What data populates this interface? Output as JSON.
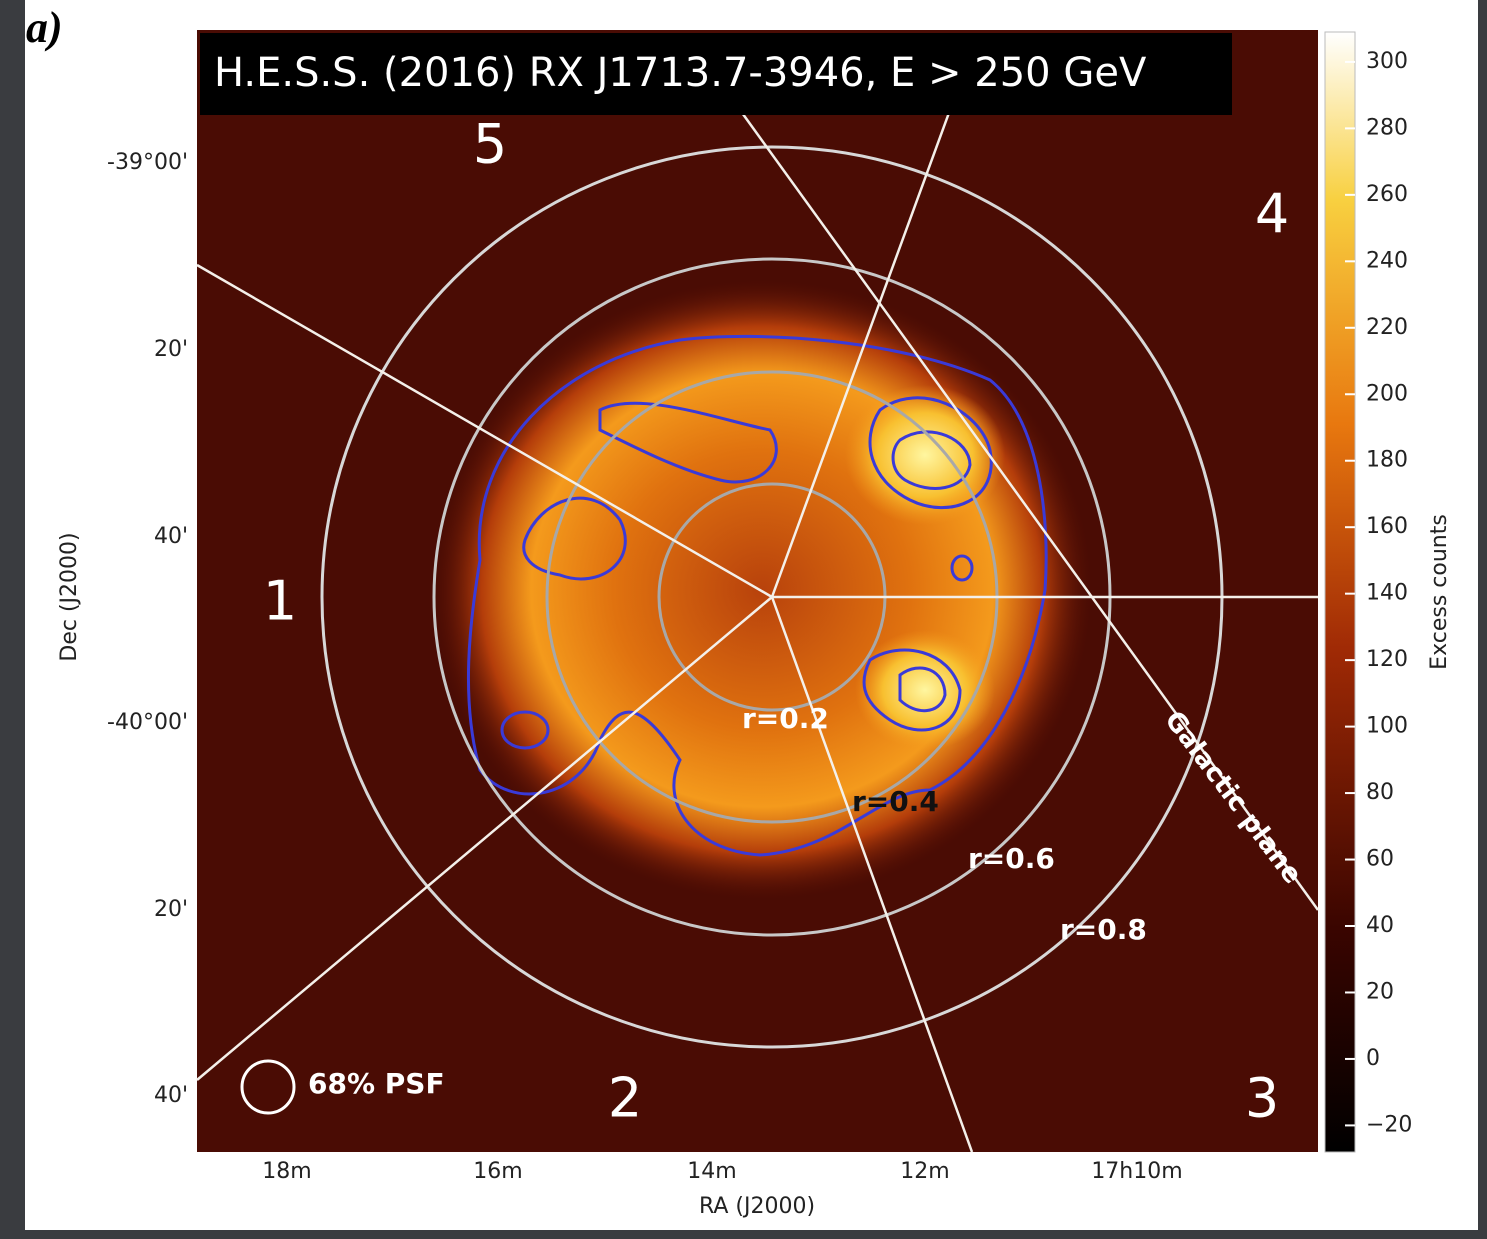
{
  "figure": {
    "panel_label": "a)",
    "title": "H.E.S.S. (2016) RX J1713.7-3946, E > 250 GeV",
    "x_axis": {
      "label": "RA (J2000)",
      "ticks": [
        "18m",
        "16m",
        "14m",
        "12m",
        "17h10m"
      ]
    },
    "y_axis": {
      "label": "Dec (J2000)",
      "ticks": [
        "-39°00'",
        "20'",
        "40'",
        "-40°00'",
        "20'",
        "40'"
      ]
    },
    "colorbar": {
      "label": "Excess counts",
      "lim": [
        -28,
        309
      ],
      "ticks": [
        300,
        280,
        260,
        240,
        220,
        200,
        180,
        160,
        140,
        120,
        100,
        80,
        60,
        40,
        20,
        0,
        {
          "value": -20,
          "label": "−20"
        }
      ]
    },
    "regions": [
      "1",
      "2",
      "3",
      "4",
      "5"
    ],
    "radius_labels": [
      "r=0.2",
      "r=0.4",
      "r=0.6",
      "r=0.8"
    ],
    "plane_label": "Galactic plane",
    "psf_label": "68% PSF"
  }
}
